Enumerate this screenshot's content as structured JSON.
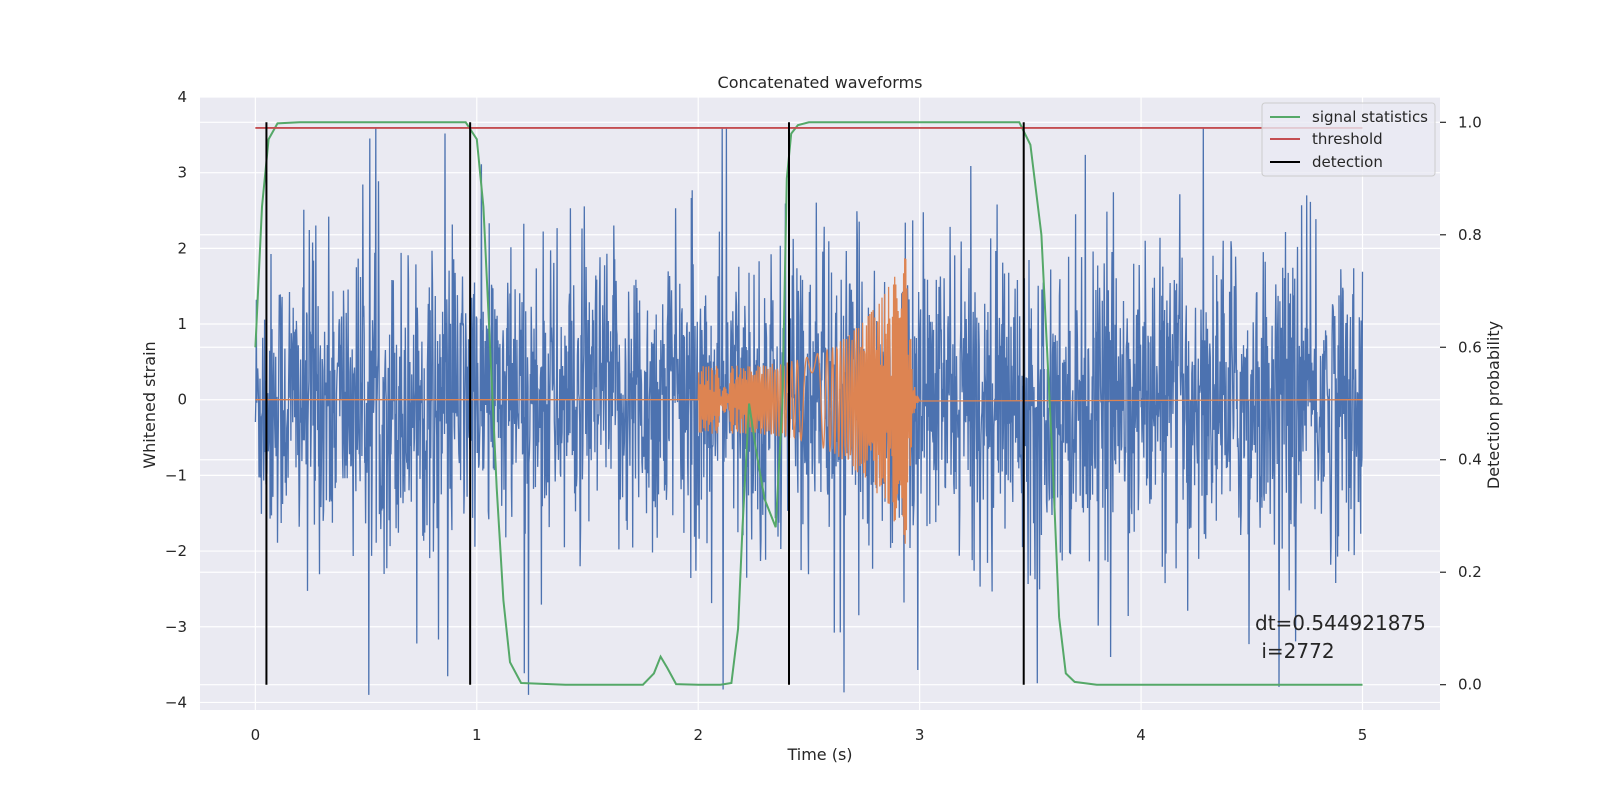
{
  "chart_data": {
    "type": "line",
    "title": "Concatenated waveforms",
    "xlabel": "Time (s)",
    "ylabel": "Whitened strain",
    "y2label": "Detection probability",
    "xlim": [
      -0.25,
      5.35
    ],
    "ylim": [
      -4.1,
      4.0
    ],
    "y2lim": [
      -0.045,
      1.045
    ],
    "grid": true,
    "legend_position": "top-right",
    "x_ticks": [
      0,
      1,
      2,
      3,
      4,
      5
    ],
    "x_tick_labels": [
      "0",
      "1",
      "2",
      "3",
      "4",
      "5"
    ],
    "y_ticks": [
      -4,
      -3,
      -2,
      -1,
      0,
      1,
      2,
      3,
      4
    ],
    "y_tick_labels": [
      "−4",
      "−3",
      "−2",
      "−1",
      "0",
      "1",
      "2",
      "3",
      "4"
    ],
    "y2_ticks": [
      0.0,
      0.2,
      0.4,
      0.6,
      0.8,
      1.0
    ],
    "y2_tick_labels": [
      "0.0",
      "0.2",
      "0.4",
      "0.6",
      "0.8",
      "1.0"
    ],
    "noise": {
      "x_range": [
        0,
        5
      ],
      "approx_amplitude_range": [
        -3.9,
        3.6
      ],
      "color": "#4c72b0"
    },
    "injected_signal": {
      "x_range": [
        2.0,
        3.0
      ],
      "start_amplitude": 0.45,
      "peak_amplitude": 2.0,
      "peak_time": 2.95,
      "color": "#dd8452"
    },
    "series": [
      {
        "name": "signal statistics",
        "axis": "right",
        "color": "#55a868",
        "x": [
          0.0,
          0.03,
          0.06,
          0.1,
          0.2,
          0.4,
          0.6,
          0.8,
          0.9,
          0.95,
          1.0,
          1.03,
          1.06,
          1.09,
          1.12,
          1.15,
          1.2,
          1.4,
          1.6,
          1.75,
          1.8,
          1.83,
          1.86,
          1.9,
          2.0,
          2.1,
          2.15,
          2.18,
          2.2,
          2.23,
          2.26,
          2.3,
          2.35,
          2.38,
          2.4,
          2.42,
          2.45,
          2.5,
          2.6,
          3.0,
          3.3,
          3.45,
          3.5,
          3.55,
          3.6,
          3.63,
          3.66,
          3.7,
          3.8,
          4.0,
          4.5,
          5.0
        ],
        "y": [
          0.6,
          0.85,
          0.97,
          0.998,
          1.0,
          1.0,
          1.0,
          1.0,
          1.0,
          1.0,
          0.97,
          0.85,
          0.6,
          0.35,
          0.15,
          0.04,
          0.003,
          0.0,
          0.0,
          0.0,
          0.02,
          0.05,
          0.03,
          0.001,
          0.0,
          0.0,
          0.003,
          0.1,
          0.28,
          0.5,
          0.42,
          0.33,
          0.28,
          0.5,
          0.9,
          0.98,
          0.995,
          1.0,
          1.0,
          1.0,
          1.0,
          1.0,
          0.96,
          0.8,
          0.4,
          0.12,
          0.02,
          0.005,
          0.0,
          0.0,
          0.0,
          0.0
        ]
      },
      {
        "name": "threshold",
        "axis": "right",
        "color": "#c44e52",
        "x": [
          0.0,
          5.0
        ],
        "y": [
          0.99,
          0.99
        ]
      },
      {
        "name": "detection",
        "axis": "right",
        "color": "#000000",
        "vlines": [
          0.05,
          0.97,
          2.41,
          3.47
        ],
        "y_range": [
          0.0,
          1.0
        ]
      }
    ],
    "annotation": {
      "text_line1": "dt=0.544921875",
      "text_line2": " i=2772"
    }
  }
}
